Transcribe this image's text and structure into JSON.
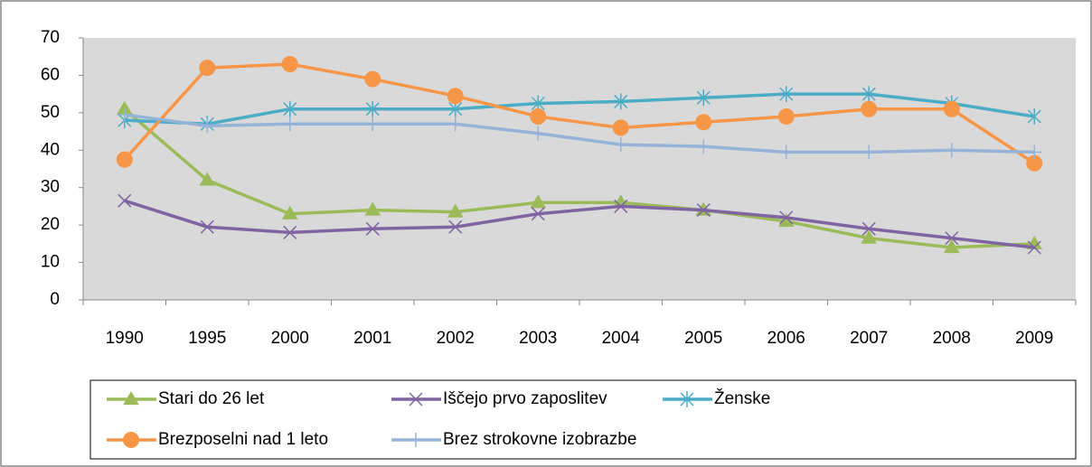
{
  "chart_data": {
    "type": "line",
    "categories": [
      "1990",
      "1995",
      "2000",
      "2001",
      "2002",
      "2003",
      "2004",
      "2005",
      "2006",
      "2007",
      "2008",
      "2009"
    ],
    "series": [
      {
        "name": "Stari do 26 let",
        "color": "#9bbb59",
        "marker": "triangle",
        "values": [
          51,
          32,
          23,
          24,
          23.5,
          26,
          26,
          24,
          21,
          16.5,
          14,
          15
        ]
      },
      {
        "name": "Iščejo prvo zaposlitev",
        "color": "#8064a2",
        "marker": "x",
        "values": [
          26.5,
          19.5,
          18,
          19,
          19.5,
          23,
          25,
          24,
          22,
          19,
          16.5,
          14
        ]
      },
      {
        "name": "Ženske",
        "color": "#4bacc6",
        "marker": "star",
        "values": [
          48,
          47,
          51,
          51,
          51,
          52.5,
          53,
          54,
          55,
          55,
          52.5,
          49
        ]
      },
      {
        "name": "Brezposelni nad 1 leto",
        "color": "#f79646",
        "marker": "circle",
        "values": [
          37.5,
          62,
          63,
          59,
          54.5,
          49,
          46,
          47.5,
          49,
          51,
          51,
          36.5
        ]
      },
      {
        "name": "Brez strokovne izobrazbe",
        "color": "#95b3d7",
        "marker": "plus",
        "values": [
          49.5,
          46.5,
          47,
          47,
          47,
          44.5,
          41.5,
          41,
          39.5,
          39.5,
          40,
          39.5
        ]
      }
    ],
    "ylim": [
      0,
      70
    ],
    "yticks": [
      0,
      10,
      20,
      30,
      40,
      50,
      60,
      70
    ],
    "grid": false,
    "legend": "bottom"
  }
}
